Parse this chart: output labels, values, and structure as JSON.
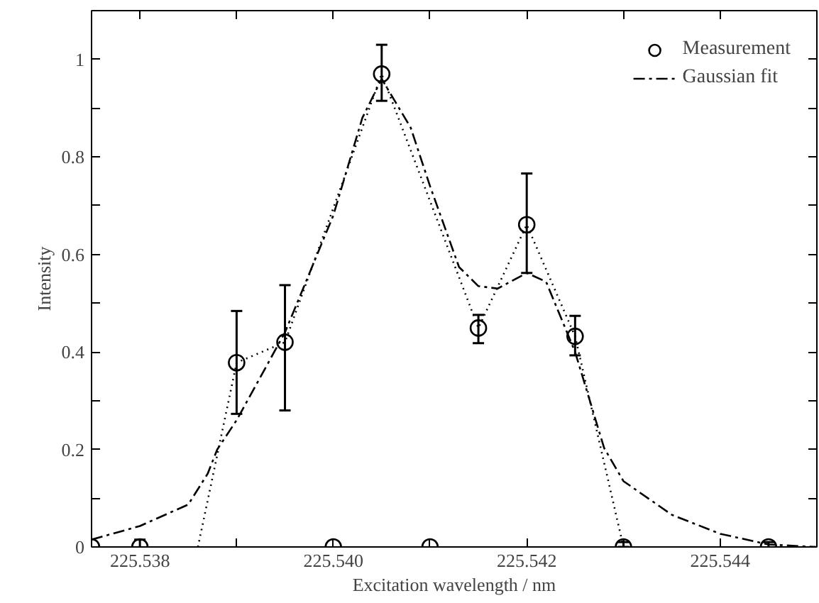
{
  "chart_data": {
    "type": "scatter",
    "xlabel": "Excitation wavelength / nm",
    "ylabel": "Intensity",
    "xlim": [
      225.5375,
      225.545
    ],
    "ylim": [
      0,
      1.1
    ],
    "xticks": [
      {
        "value": 225.538,
        "label": "225.538"
      },
      {
        "value": 225.539,
        "label": null
      },
      {
        "value": 225.54,
        "label": "225.540"
      },
      {
        "value": 225.541,
        "label": null
      },
      {
        "value": 225.542,
        "label": "225.542"
      },
      {
        "value": 225.543,
        "label": null
      },
      {
        "value": 225.544,
        "label": "225.544"
      }
    ],
    "yticks": [
      0,
      {
        "value": 0.1,
        "label": null
      },
      0.2,
      {
        "value": 0.3,
        "label": null
      },
      0.4,
      {
        "value": 0.5,
        "label": null
      },
      0.6,
      {
        "value": 0.7,
        "label": null
      },
      0.8,
      {
        "value": 0.9,
        "label": null
      },
      1
    ],
    "grid": false,
    "legend": "top right",
    "series": [
      {
        "name": "Measurement",
        "type": "scatter",
        "color": "#000000",
        "marker": "circle",
        "x": [
          225.5375,
          225.538,
          225.539,
          225.5395,
          225.54,
          225.5405,
          225.541,
          225.5415,
          225.542,
          225.5425,
          225.543,
          225.5445
        ],
        "values": [
          0,
          0,
          0.378,
          0.42,
          0,
          0.97,
          0,
          0.449,
          0.661,
          0.432,
          0,
          0
        ],
        "errors": [
          null,
          0.015,
          [
            0.273,
            0.484
          ],
          [
            0.28,
            0.537
          ],
          null,
          [
            0.915,
            1.03
          ],
          null,
          [
            0.418,
            0.476
          ],
          [
            0.562,
            0.766
          ],
          [
            0.393,
            0.474
          ],
          [
            0,
            0.01
          ],
          0.01
        ]
      },
      {
        "type": "line",
        "color": "#000000",
        "marker": "none",
        "line_style": "dotted",
        "x": [
          225.5386,
          225.539,
          225.5395,
          225.5405,
          225.5415,
          225.542,
          225.5425,
          225.543
        ],
        "values": [
          0,
          0.378,
          0.42,
          0.97,
          0.449,
          0.661,
          0.432,
          0
        ]
      },
      {
        "name": "Gaussian fit",
        "type": "line",
        "color": "#000000",
        "marker": "none",
        "line_style": "dashed",
        "x": [
          225.5375,
          225.538,
          225.5385,
          225.5387,
          225.5388,
          225.539,
          225.5395,
          225.54,
          225.5403,
          225.5405,
          225.5408,
          225.541,
          225.5413,
          225.5415,
          225.5417,
          225.542,
          225.5422,
          225.5425,
          225.5428,
          225.543,
          225.5435,
          225.544,
          225.5445,
          225.545
        ],
        "values": [
          0.015,
          0.043,
          0.087,
          0.15,
          0.2,
          0.26,
          0.44,
          0.68,
          0.88,
          0.96,
          0.86,
          0.74,
          0.574,
          0.535,
          0.53,
          0.562,
          0.544,
          0.4,
          0.203,
          0.135,
          0.066,
          0.027,
          0.005,
          0
        ]
      }
    ]
  }
}
